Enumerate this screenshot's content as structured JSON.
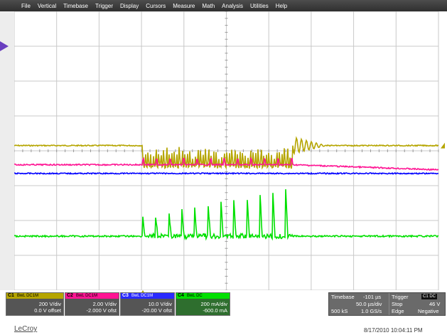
{
  "menu": [
    "File",
    "Vertical",
    "Timebase",
    "Trigger",
    "Display",
    "Cursors",
    "Measure",
    "Math",
    "Analysis",
    "Utilities",
    "Help"
  ],
  "channels": [
    {
      "id": "C1",
      "label": "C1",
      "flags": "BwL DC1M",
      "volts_div": "200 V/div",
      "offset": "0.0 V offset",
      "color": "#b5a500",
      "baseline_div": 0.15
    },
    {
      "id": "C2",
      "label": "C2",
      "flags": "BwL DC1M",
      "volts_div": "2.00 V/div",
      "offset": "-2.000 V ofst",
      "color": "#ff1493",
      "baseline_div": -0.4
    },
    {
      "id": "C3",
      "label": "C3",
      "flags": "BwL DC1M",
      "volts_div": "10.0 V/div",
      "offset": "-20.00 V ofst",
      "color": "#0000ff",
      "baseline_div": -0.65
    },
    {
      "id": "C4",
      "label": "C4",
      "flags": "BwL DC",
      "volts_div": "200 mA/div",
      "offset": "-600.0 mA",
      "color": "#00e000",
      "baseline_div": -2.45
    }
  ],
  "timebase": {
    "label": "Timebase",
    "delay": "-101 µs",
    "per_div": "50.0 µs/div",
    "samples": "500 kS",
    "rate": "1.0 GS/s"
  },
  "trigger": {
    "label": "Trigger",
    "tag": "C1 DC",
    "mode": "Stop",
    "level": "46 V",
    "type": "Edge",
    "slope": "Negative"
  },
  "brand": "LeCroy",
  "timestamp": "8/17/2010 10:04:11 PM",
  "colors": {
    "grid_bg": "#ffffff",
    "grid_line": "#c8c8c8",
    "ch1": "#b5a500",
    "ch2": "#ff1493",
    "ch3": "#0000ff",
    "ch4": "#00e000"
  },
  "icons": {
    "side_marker": "triangle-right-icon",
    "trigger_level": "triangle-left-icon",
    "trigger_position": "triangle-up-icon"
  }
}
